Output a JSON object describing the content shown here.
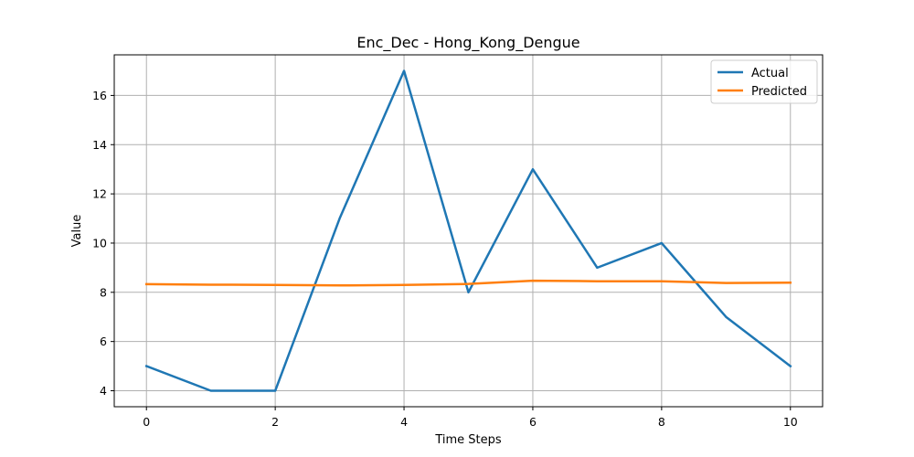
{
  "chart_data": {
    "type": "line",
    "title": "Enc_Dec - Hong_Kong_Dengue",
    "xlabel": "Time Steps",
    "ylabel": "Value",
    "xlim": [
      -0.5,
      10.5
    ],
    "ylim": [
      3.35,
      17.65
    ],
    "xticks": [
      0,
      2,
      4,
      6,
      8,
      10
    ],
    "yticks": [
      4,
      6,
      8,
      10,
      12,
      14,
      16
    ],
    "grid": true,
    "legend": "top-right",
    "x": [
      0,
      1,
      2,
      3,
      4,
      5,
      6,
      7,
      8,
      9,
      10
    ],
    "series": [
      {
        "name": "Actual",
        "color": "#1f77b4",
        "values": [
          5,
          4,
          4,
          11,
          17,
          8,
          13,
          9,
          10,
          7,
          5
        ]
      },
      {
        "name": "Predicted",
        "color": "#ff7f0e",
        "values": [
          8.33,
          8.31,
          8.3,
          8.28,
          8.3,
          8.34,
          8.47,
          8.45,
          8.45,
          8.38,
          8.39
        ]
      }
    ]
  }
}
